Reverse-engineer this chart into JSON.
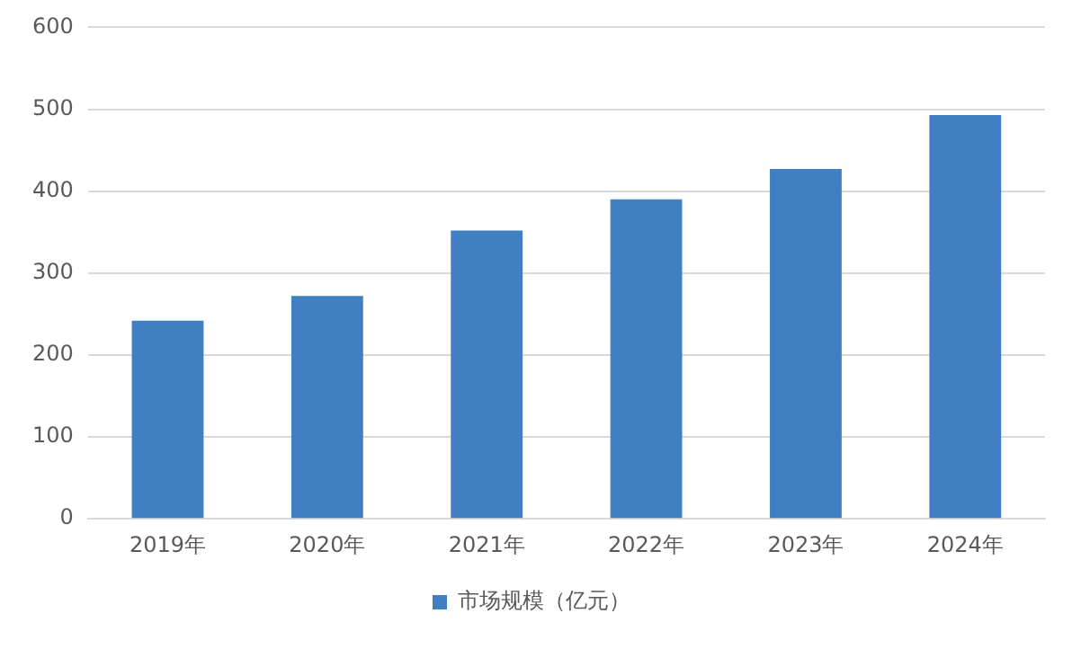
{
  "chart_data": {
    "type": "bar",
    "categories": [
      "2019年",
      "2020年",
      "2021年",
      "2022年",
      "2023年",
      "2024年"
    ],
    "series": [
      {
        "name": "市场规模（亿元）",
        "color": "#3f7fc2",
        "values": [
          242,
          272,
          352,
          390,
          427,
          493
        ]
      }
    ],
    "ylim": [
      0,
      600
    ],
    "yticks": [
      0,
      100,
      200,
      300,
      400,
      500,
      600
    ],
    "grid": "y",
    "legend": "bottom"
  }
}
